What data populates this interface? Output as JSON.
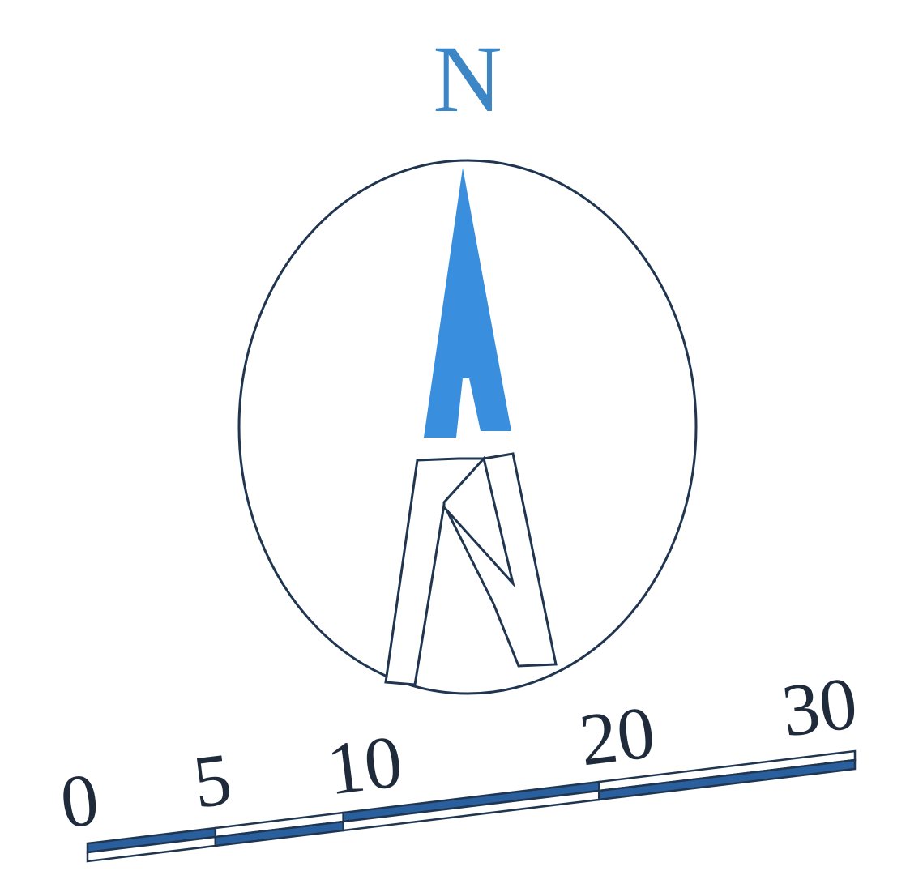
{
  "compass": {
    "north_label": "N"
  },
  "scale_bar": {
    "ticks": [
      {
        "value": 0,
        "label": "0"
      },
      {
        "value": 5,
        "label": "5"
      },
      {
        "value": 10,
        "label": "10"
      },
      {
        "value": 20,
        "label": "20"
      },
      {
        "value": 30,
        "label": "30"
      }
    ]
  },
  "colors": {
    "accent_blue": "#3a8ede",
    "dark_blue": "#2a5f9e",
    "outline": "#1f3550",
    "label_blue": "#3d86c6",
    "label_dark": "#1f2a3a"
  }
}
